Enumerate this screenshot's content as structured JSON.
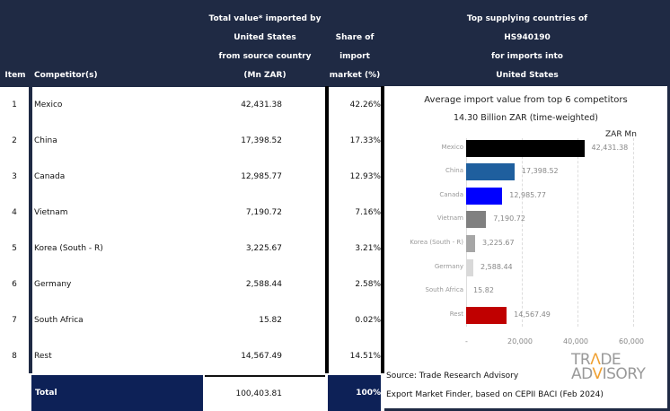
{
  "header": {
    "item": "Item",
    "competitor": "Competitor(s)",
    "total_value": "Total value* imported by\nUnited States\nfrom source country\n(Mn ZAR)",
    "share": "Share of\nimport\nmarket (%)",
    "chart_heading": "Top supplying countries of\nHS940190\nfor imports into\nUnited States"
  },
  "rows": [
    {
      "item": "1",
      "competitor": "Mexico",
      "value": "42,431.38",
      "share": "42.26%"
    },
    {
      "item": "2",
      "competitor": "China",
      "value": "17,398.52",
      "share": "17.33%"
    },
    {
      "item": "3",
      "competitor": "Canada",
      "value": "12,985.77",
      "share": "12.93%"
    },
    {
      "item": "4",
      "competitor": "Vietnam",
      "value": "7,190.72",
      "share": "7.16%"
    },
    {
      "item": "5",
      "competitor": "Korea (South - R)",
      "value": "3,225.67",
      "share": "3.21%"
    },
    {
      "item": "6",
      "competitor": "Germany",
      "value": "2,588.44",
      "share": "2.58%"
    },
    {
      "item": "7",
      "competitor": "South Africa",
      "value": "15.82",
      "share": "0.02%"
    },
    {
      "item": "8",
      "competitor": "Rest",
      "value": "14,567.49",
      "share": "14.51%"
    }
  ],
  "total": {
    "label": "Total",
    "value": "100,403.81",
    "share": "100%"
  },
  "chart_data": {
    "type": "bar",
    "orientation": "horizontal",
    "title": "Average import value from top 6 competitors",
    "subtitle": "14.30 Billion ZAR (time-weighted)",
    "unit_label": "ZAR Mn",
    "categories": [
      "Mexico",
      "China",
      "Canada",
      "Vietnam",
      "Korea (South - R)",
      "Germany",
      "South Africa",
      "Rest"
    ],
    "values": [
      42431.38,
      17398.52,
      12985.77,
      7190.72,
      3225.67,
      2588.44,
      15.82,
      14567.49
    ],
    "value_labels": [
      "42,431.38",
      "17,398.52",
      "12,985.77",
      "7,190.72",
      "3,225.67",
      "2,588.44",
      "15.82",
      "14,567.49"
    ],
    "colors": [
      "#000000",
      "#1f5f9e",
      "#0000ff",
      "#808080",
      "#a6a6a6",
      "#d9d9d9",
      "#ffffff",
      "#c00000"
    ],
    "xlim": [
      0,
      60000
    ],
    "ticks": [
      "-",
      "20,000",
      "40,000",
      "60,000"
    ],
    "tick_values": [
      0,
      20000,
      40000,
      60000
    ],
    "grid": true
  },
  "source": {
    "line1": "Source: Trade Research Advisory",
    "line2": "Export Market Finder, based on CEPII BACI (Feb 2024)"
  },
  "logo": {
    "line1": "TRADE",
    "line2": "ADVISORY"
  }
}
